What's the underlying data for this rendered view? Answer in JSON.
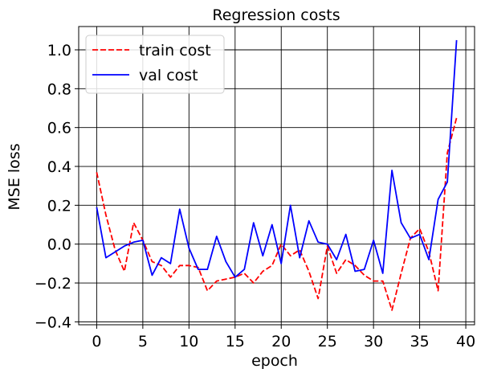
{
  "chart_data": {
    "type": "line",
    "title": "Regression costs",
    "xlabel": "epoch",
    "ylabel": "MSE loss",
    "xlim": [
      -1.95,
      40.95
    ],
    "ylim": [
      -0.415,
      1.12
    ],
    "xticks": [
      0,
      5,
      10,
      15,
      20,
      25,
      30,
      35,
      40
    ],
    "yticks": [
      -0.4,
      -0.2,
      0.0,
      0.2,
      0.4,
      0.6,
      0.8,
      1.0
    ],
    "xtick_labels": [
      "0",
      "5",
      "10",
      "15",
      "20",
      "25",
      "30",
      "35",
      "40"
    ],
    "ytick_labels": [
      "−0.4",
      "−0.2",
      "0.0",
      "0.2",
      "0.4",
      "0.6",
      "0.8",
      "1.0"
    ],
    "grid": true,
    "legend_position": "top-left",
    "x": [
      0,
      1,
      2,
      3,
      4,
      5,
      6,
      7,
      8,
      9,
      10,
      11,
      12,
      13,
      14,
      15,
      16,
      17,
      18,
      19,
      20,
      21,
      22,
      23,
      24,
      25,
      26,
      27,
      28,
      29,
      30,
      31,
      32,
      33,
      34,
      35,
      36,
      37,
      38,
      39
    ],
    "series": [
      {
        "name": "train cost",
        "color": "#ff0000",
        "linestyle": "dashed",
        "values": [
          0.37,
          0.15,
          -0.03,
          -0.14,
          0.11,
          0.02,
          -0.09,
          -0.11,
          -0.17,
          -0.11,
          -0.11,
          -0.12,
          -0.24,
          -0.19,
          -0.18,
          -0.17,
          -0.15,
          -0.2,
          -0.14,
          -0.11,
          0.0,
          -0.06,
          -0.03,
          -0.14,
          -0.28,
          -0.01,
          -0.15,
          -0.08,
          -0.11,
          -0.16,
          -0.19,
          -0.19,
          -0.34,
          -0.15,
          0.03,
          0.08,
          -0.04,
          -0.24,
          0.47,
          0.65
        ]
      },
      {
        "name": "val cost",
        "color": "#0000ff",
        "linestyle": "solid",
        "values": [
          0.19,
          -0.07,
          -0.04,
          -0.01,
          0.01,
          0.02,
          -0.16,
          -0.07,
          -0.1,
          0.18,
          -0.02,
          -0.13,
          -0.13,
          0.04,
          -0.09,
          -0.17,
          -0.13,
          0.11,
          -0.06,
          0.1,
          -0.1,
          0.2,
          -0.07,
          0.12,
          0.01,
          0.0,
          -0.08,
          0.05,
          -0.14,
          -0.13,
          0.02,
          -0.15,
          0.38,
          0.11,
          0.03,
          0.05,
          -0.08,
          0.23,
          0.32,
          1.05
        ]
      }
    ]
  }
}
